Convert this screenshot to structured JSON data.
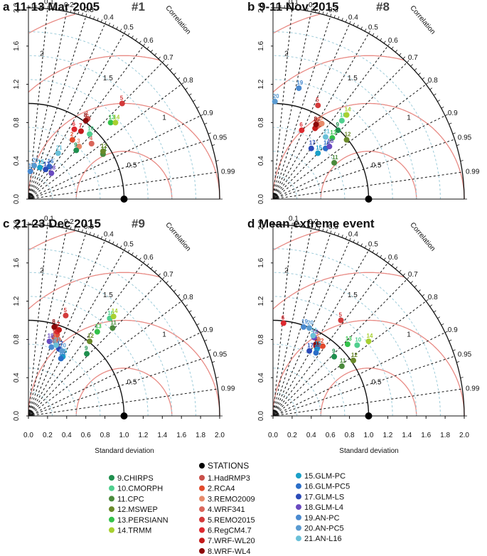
{
  "xlabel": "Standard deviation",
  "ylabel": "",
  "correlation_label": "Correlation",
  "chart_data": [
    {
      "type": "scatter",
      "panel_letter": "a",
      "title": "11-13 Mar 2005",
      "event_number": "#1",
      "xlim": [
        0,
        2.0
      ],
      "ylim": [
        0,
        2.0
      ],
      "points": [
        {
          "id": 1,
          "x": 0.62,
          "y": 0.84
        },
        {
          "id": 2,
          "x": 0.46,
          "y": 0.62
        },
        {
          "id": 3,
          "x": 0.53,
          "y": 0.55
        },
        {
          "id": 4,
          "x": 0.66,
          "y": 0.58
        },
        {
          "id": 5,
          "x": 0.98,
          "y": 1.0
        },
        {
          "id": 6,
          "x": 0.48,
          "y": 0.73
        },
        {
          "id": 7,
          "x": 0.55,
          "y": 0.71
        },
        {
          "id": 8,
          "x": 0.6,
          "y": 0.82
        },
        {
          "id": 9,
          "x": 0.5,
          "y": 0.51
        },
        {
          "id": 10,
          "x": 0.64,
          "y": 0.68
        },
        {
          "id": 11,
          "x": 0.78,
          "y": 0.47
        },
        {
          "id": 12,
          "x": 0.78,
          "y": 0.5
        },
        {
          "id": 13,
          "x": 0.86,
          "y": 0.8
        },
        {
          "id": 14,
          "x": 0.91,
          "y": 0.8
        },
        {
          "id": 15,
          "x": 0.12,
          "y": 0.33
        },
        {
          "id": 16,
          "x": 0.22,
          "y": 0.34
        },
        {
          "id": 17,
          "x": 0.18,
          "y": 0.31
        },
        {
          "id": 18,
          "x": 0.24,
          "y": 0.27
        },
        {
          "id": 19,
          "x": 0.02,
          "y": 0.29
        },
        {
          "id": 20,
          "x": 0.06,
          "y": 0.35
        },
        {
          "id": 21,
          "x": 0.31,
          "y": 0.48
        }
      ]
    },
    {
      "type": "scatter",
      "panel_letter": "b",
      "title": "9-11 Nov 2015",
      "event_number": "#8",
      "xlim": [
        0,
        2.0
      ],
      "ylim": [
        0,
        2.0
      ],
      "points": [
        {
          "id": 1,
          "x": 0.49,
          "y": 0.78
        },
        {
          "id": 2,
          "x": 0.47,
          "y": 0.77
        },
        {
          "id": 3,
          "x": 0.51,
          "y": 0.79
        },
        {
          "id": 4,
          "x": 0.46,
          "y": 0.76
        },
        {
          "id": 5,
          "x": 0.47,
          "y": 0.98
        },
        {
          "id": 6,
          "x": 0.3,
          "y": 0.72
        },
        {
          "id": 7,
          "x": 0.44,
          "y": 0.74
        },
        {
          "id": 8,
          "x": 0.45,
          "y": 0.78
        },
        {
          "id": 9,
          "x": 0.68,
          "y": 0.72
        },
        {
          "id": 10,
          "x": 0.72,
          "y": 0.82
        },
        {
          "id": 11,
          "x": 0.64,
          "y": 0.38
        },
        {
          "id": 12,
          "x": 0.77,
          "y": 0.62
        },
        {
          "id": 13,
          "x": 0.62,
          "y": 0.64
        },
        {
          "id": 14,
          "x": 0.77,
          "y": 0.88
        },
        {
          "id": 15,
          "x": 0.47,
          "y": 0.48
        },
        {
          "id": 16,
          "x": 0.55,
          "y": 0.53
        },
        {
          "id": 17,
          "x": 0.4,
          "y": 0.53
        },
        {
          "id": 18,
          "x": 0.59,
          "y": 0.55
        },
        {
          "id": 19,
          "x": 0.27,
          "y": 1.16
        },
        {
          "id": 20,
          "x": 0.02,
          "y": 1.02
        },
        {
          "id": 21,
          "x": 0.55,
          "y": 0.65
        }
      ]
    },
    {
      "type": "scatter",
      "panel_letter": "c",
      "title": "21-23 Dec 2015",
      "event_number": "#9",
      "xlim": [
        0,
        2.0
      ],
      "ylim": [
        0,
        2.0
      ],
      "points": [
        {
          "id": 1,
          "x": 0.27,
          "y": 0.82
        },
        {
          "id": 2,
          "x": 0.3,
          "y": 0.85
        },
        {
          "id": 3,
          "x": 0.28,
          "y": 0.78
        },
        {
          "id": 4,
          "x": 0.31,
          "y": 0.8
        },
        {
          "id": 5,
          "x": 0.39,
          "y": 1.05
        },
        {
          "id": 6,
          "x": 0.3,
          "y": 0.88
        },
        {
          "id": 7,
          "x": 0.32,
          "y": 0.9
        },
        {
          "id": 8,
          "x": 0.27,
          "y": 0.93
        },
        {
          "id": 9,
          "x": 0.61,
          "y": 0.65
        },
        {
          "id": 10,
          "x": 0.85,
          "y": 1.02
        },
        {
          "id": 11,
          "x": 0.88,
          "y": 0.92
        },
        {
          "id": 12,
          "x": 0.64,
          "y": 0.78
        },
        {
          "id": 13,
          "x": 0.72,
          "y": 0.88
        },
        {
          "id": 14,
          "x": 0.89,
          "y": 1.04
        },
        {
          "id": 15,
          "x": 0.36,
          "y": 0.62
        },
        {
          "id": 16,
          "x": 0.34,
          "y": 0.6
        },
        {
          "id": 17,
          "x": 0.32,
          "y": 0.7
        },
        {
          "id": 18,
          "x": 0.22,
          "y": 0.78
        },
        {
          "id": 19,
          "x": 0.24,
          "y": 0.72
        },
        {
          "id": 20,
          "x": 0.35,
          "y": 0.68
        },
        {
          "id": 21,
          "x": 0.29,
          "y": 0.74
        }
      ]
    },
    {
      "type": "scatter",
      "panel_letter": "d",
      "title": "Mean extreme event",
      "event_number": "",
      "xlim": [
        0,
        2.0
      ],
      "ylim": [
        0,
        2.0
      ],
      "points": [
        {
          "id": 1,
          "x": 0.48,
          "y": 0.74
        },
        {
          "id": 2,
          "x": 0.52,
          "y": 0.73
        },
        {
          "id": 3,
          "x": 0.47,
          "y": 0.8
        },
        {
          "id": 4,
          "x": 0.47,
          "y": 0.72
        },
        {
          "id": 5,
          "x": 0.71,
          "y": 1.0
        },
        {
          "id": 6,
          "x": 0.11,
          "y": 0.97
        },
        {
          "id": 7,
          "x": 0.45,
          "y": 0.73
        },
        {
          "id": 8,
          "x": 0.45,
          "y": 0.75
        },
        {
          "id": 9,
          "x": 0.64,
          "y": 0.62
        },
        {
          "id": 10,
          "x": 0.88,
          "y": 0.74
        },
        {
          "id": 11,
          "x": 0.72,
          "y": 0.52
        },
        {
          "id": 12,
          "x": 0.84,
          "y": 0.58
        },
        {
          "id": 13,
          "x": 0.78,
          "y": 0.75
        },
        {
          "id": 14,
          "x": 1.0,
          "y": 0.78
        },
        {
          "id": 15,
          "x": 0.46,
          "y": 0.7
        },
        {
          "id": 16,
          "x": 0.45,
          "y": 0.66
        },
        {
          "id": 17,
          "x": 0.38,
          "y": 0.68
        },
        {
          "id": 18,
          "x": 0.43,
          "y": 0.82
        },
        {
          "id": 19,
          "x": 0.32,
          "y": 0.93
        },
        {
          "id": 20,
          "x": 0.38,
          "y": 0.92
        },
        {
          "id": 21,
          "x": 0.42,
          "y": 0.84
        }
      ]
    }
  ],
  "axis_ticks": [
    "0.0",
    "0.4",
    "0.8",
    "1.2",
    "1.6",
    "2.0"
  ],
  "rms_labels": [
    "0.5",
    "1",
    "1.5",
    "2"
  ],
  "correlation_ticks": [
    "0.1",
    "0.2",
    "0.3",
    "0.4",
    "0.5",
    "0.6",
    "0.7",
    "0.8",
    "0.9",
    "0.95",
    "0.99"
  ],
  "legend": {
    "stations_label": "STATIONS",
    "stations_color": "#000000",
    "models": [
      {
        "id": 1,
        "label": "1.HadRMP3",
        "color": "#c9504a"
      },
      {
        "id": 2,
        "label": "2.RCA4",
        "color": "#e24a2b"
      },
      {
        "id": 3,
        "label": "3.REMO2009",
        "color": "#e68a6a"
      },
      {
        "id": 4,
        "label": "4.WRF341",
        "color": "#d9655a"
      },
      {
        "id": 5,
        "label": "5.REMO2015",
        "color": "#d33a3a"
      },
      {
        "id": 6,
        "label": "6.RegCM4.7",
        "color": "#dd2a30"
      },
      {
        "id": 7,
        "label": "7.WRF-WL20",
        "color": "#c41a1a"
      },
      {
        "id": 8,
        "label": "8.WRF-WL4",
        "color": "#8b0a0a"
      },
      {
        "id": 9,
        "label": "9.CHIRPS",
        "color": "#1f8f4e"
      },
      {
        "id": 10,
        "label": "10.CMORPH",
        "color": "#4fcf8e"
      },
      {
        "id": 11,
        "label": "11.CPC",
        "color": "#4a8a3c"
      },
      {
        "id": 12,
        "label": "12.MSWEP",
        "color": "#6a8a2a"
      },
      {
        "id": 13,
        "label": "13.PERSIANN",
        "color": "#34c24a"
      },
      {
        "id": 14,
        "label": "14.TRMM",
        "color": "#a8d030"
      },
      {
        "id": 15,
        "label": "15.GLM-PC",
        "color": "#1aa0c8"
      },
      {
        "id": 16,
        "label": "16.GLM-PC5",
        "color": "#2a6ec8"
      },
      {
        "id": 17,
        "label": "17.GLM-LS",
        "color": "#2a4ab8"
      },
      {
        "id": 18,
        "label": "18.GLM-L4",
        "color": "#6a4ac0"
      },
      {
        "id": 19,
        "label": "19.AN-PC",
        "color": "#4a8ad0"
      },
      {
        "id": 20,
        "label": "20.AN-PC5",
        "color": "#5a9ad0"
      },
      {
        "id": 21,
        "label": "21.AN-L16",
        "color": "#6ac0d8"
      }
    ]
  }
}
